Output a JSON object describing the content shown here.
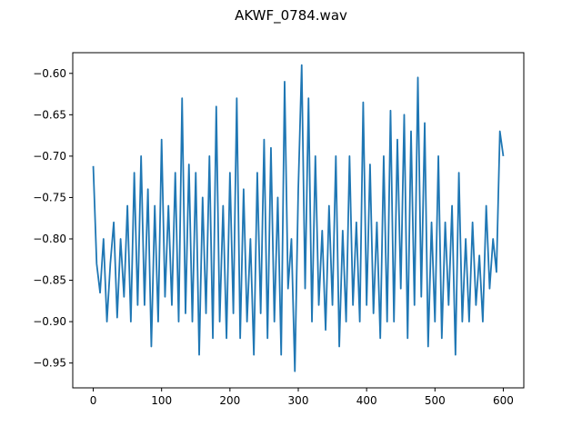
{
  "chart_data": {
    "type": "line",
    "title": "AKWF_0784.wav",
    "xlabel": "",
    "ylabel": "",
    "xlim": [
      -30,
      630
    ],
    "ylim": [
      -0.98,
      -0.575
    ],
    "xticks": [
      0,
      100,
      200,
      300,
      400,
      500,
      600
    ],
    "yticks": [
      -0.95,
      -0.9,
      -0.85,
      -0.8,
      -0.75,
      -0.7,
      -0.65,
      -0.6
    ],
    "ytick_labels": [
      "−0.95",
      "−0.90",
      "−0.85",
      "−0.80",
      "−0.75",
      "−0.70",
      "−0.65",
      "−0.60"
    ],
    "grid": false,
    "legend": "none",
    "series": [
      {
        "color": "#1f77b4",
        "x": [
          0,
          5,
          10,
          15,
          20,
          25,
          30,
          35,
          40,
          45,
          50,
          55,
          60,
          65,
          70,
          75,
          80,
          85,
          90,
          95,
          100,
          105,
          110,
          115,
          120,
          125,
          130,
          135,
          140,
          145,
          150,
          155,
          160,
          165,
          170,
          175,
          180,
          185,
          190,
          195,
          200,
          205,
          210,
          215,
          220,
          225,
          230,
          235,
          240,
          245,
          250,
          255,
          260,
          265,
          270,
          275,
          280,
          285,
          290,
          295,
          300,
          305,
          310,
          315,
          320,
          325,
          330,
          335,
          340,
          345,
          350,
          355,
          360,
          365,
          370,
          375,
          380,
          385,
          390,
          395,
          400,
          405,
          410,
          415,
          420,
          425,
          430,
          435,
          440,
          445,
          450,
          455,
          460,
          465,
          470,
          475,
          480,
          485,
          490,
          495,
          500,
          505,
          510,
          515,
          520,
          525,
          530,
          535,
          540,
          545,
          550,
          555,
          560,
          565,
          570,
          575,
          580,
          585,
          590,
          595,
          600
        ],
        "y": [
          -0.712,
          -0.83,
          -0.865,
          -0.8,
          -0.9,
          -0.83,
          -0.78,
          -0.895,
          -0.8,
          -0.87,
          -0.76,
          -0.9,
          -0.72,
          -0.88,
          -0.7,
          -0.88,
          -0.74,
          -0.93,
          -0.76,
          -0.9,
          -0.68,
          -0.87,
          -0.76,
          -0.88,
          -0.72,
          -0.9,
          -0.63,
          -0.89,
          -0.71,
          -0.9,
          -0.72,
          -0.94,
          -0.75,
          -0.89,
          -0.7,
          -0.92,
          -0.64,
          -0.9,
          -0.76,
          -0.92,
          -0.72,
          -0.89,
          -0.63,
          -0.92,
          -0.74,
          -0.9,
          -0.8,
          -0.94,
          -0.72,
          -0.89,
          -0.68,
          -0.92,
          -0.69,
          -0.9,
          -0.75,
          -0.94,
          -0.61,
          -0.86,
          -0.8,
          -0.96,
          -0.74,
          -0.59,
          -0.86,
          -0.63,
          -0.9,
          -0.7,
          -0.88,
          -0.79,
          -0.91,
          -0.76,
          -0.88,
          -0.7,
          -0.93,
          -0.79,
          -0.9,
          -0.7,
          -0.88,
          -0.78,
          -0.9,
          -0.635,
          -0.88,
          -0.71,
          -0.89,
          -0.78,
          -0.92,
          -0.7,
          -0.9,
          -0.645,
          -0.9,
          -0.68,
          -0.86,
          -0.65,
          -0.92,
          -0.67,
          -0.88,
          -0.605,
          -0.87,
          -0.66,
          -0.93,
          -0.78,
          -0.9,
          -0.7,
          -0.92,
          -0.78,
          -0.88,
          -0.76,
          -0.94,
          -0.72,
          -0.9,
          -0.8,
          -0.9,
          -0.78,
          -0.88,
          -0.82,
          -0.9,
          -0.76,
          -0.86,
          -0.8,
          -0.84,
          -0.67,
          -0.7
        ]
      }
    ]
  }
}
